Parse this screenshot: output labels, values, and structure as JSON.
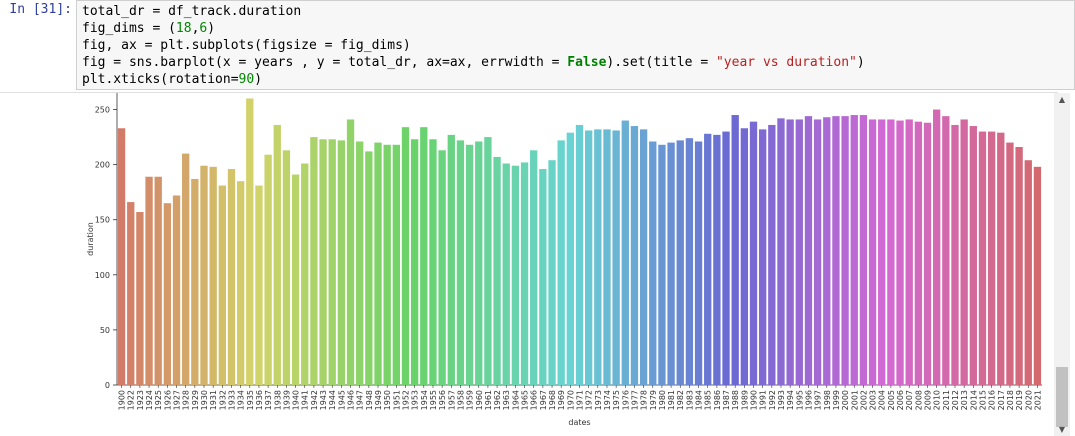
{
  "cell": {
    "prompt": "In [31]:",
    "code": {
      "l1": "total_dr = df_track.duration",
      "l2a": "fig_dims = (",
      "l2b": "18",
      "l2c": ",",
      "l2d": "6",
      "l2e": ")",
      "l3": "fig, ax = plt.subplots(figsize = fig_dims)",
      "l4a": "fig = sns.barplot(x = years , y = total_dr, ax=ax, errwidth = ",
      "l4b": "False",
      "l4c": ").set(title = ",
      "l4d": "\"year vs duration\"",
      "l4e": ")",
      "l5a": "plt.xticks(rotation=",
      "l5b": "90",
      "l5c": ")"
    }
  },
  "chart_data": {
    "type": "bar",
    "xlabel": "dates",
    "ylabel": "duration",
    "ylim": [
      0,
      265
    ],
    "yticks": [
      0,
      50,
      100,
      150,
      200,
      250
    ],
    "grid": false,
    "categories": [
      "1900",
      "1922",
      "1923",
      "1924",
      "1925",
      "1926",
      "1927",
      "1928",
      "1929",
      "1930",
      "1931",
      "1932",
      "1933",
      "1934",
      "1935",
      "1936",
      "1937",
      "1938",
      "1939",
      "1940",
      "1941",
      "1942",
      "1943",
      "1944",
      "1945",
      "1946",
      "1947",
      "1948",
      "1949",
      "1950",
      "1951",
      "1952",
      "1953",
      "1954",
      "1955",
      "1956",
      "1957",
      "1958",
      "1959",
      "1960",
      "1961",
      "1962",
      "1963",
      "1964",
      "1965",
      "1966",
      "1967",
      "1968",
      "1969",
      "1970",
      "1971",
      "1972",
      "1973",
      "1974",
      "1975",
      "1976",
      "1977",
      "1978",
      "1979",
      "1980",
      "1981",
      "1982",
      "1983",
      "1984",
      "1985",
      "1986",
      "1987",
      "1988",
      "1989",
      "1990",
      "1991",
      "1992",
      "1993",
      "1994",
      "1995",
      "1996",
      "1997",
      "1998",
      "1999",
      "2000",
      "2001",
      "2002",
      "2003",
      "2004",
      "2005",
      "2006",
      "2007",
      "2008",
      "2009",
      "2010",
      "2011",
      "2012",
      "2013",
      "2014",
      "2015",
      "2016",
      "2017",
      "2018",
      "2019",
      "2020",
      "2021"
    ],
    "values": [
      233,
      166,
      157,
      189,
      189,
      165,
      172,
      210,
      187,
      199,
      198,
      181,
      196,
      185,
      260,
      181,
      209,
      236,
      213,
      191,
      201,
      225,
      223,
      223,
      222,
      241,
      221,
      212,
      220,
      218,
      218,
      234,
      223,
      234,
      223,
      213,
      227,
      222,
      218,
      221,
      225,
      207,
      201,
      199,
      202,
      213,
      196,
      204,
      222,
      229,
      236,
      231,
      232,
      232,
      231,
      240,
      235,
      232,
      221,
      218,
      220,
      222,
      224,
      221,
      228,
      227,
      230,
      245,
      233,
      239,
      232,
      236,
      242,
      241,
      241,
      244,
      241,
      243,
      244,
      244,
      245,
      245,
      241,
      241,
      241,
      240,
      241,
      239,
      238,
      250,
      244,
      236,
      241,
      235,
      230,
      230,
      229,
      220,
      216,
      204,
      198
    ]
  }
}
